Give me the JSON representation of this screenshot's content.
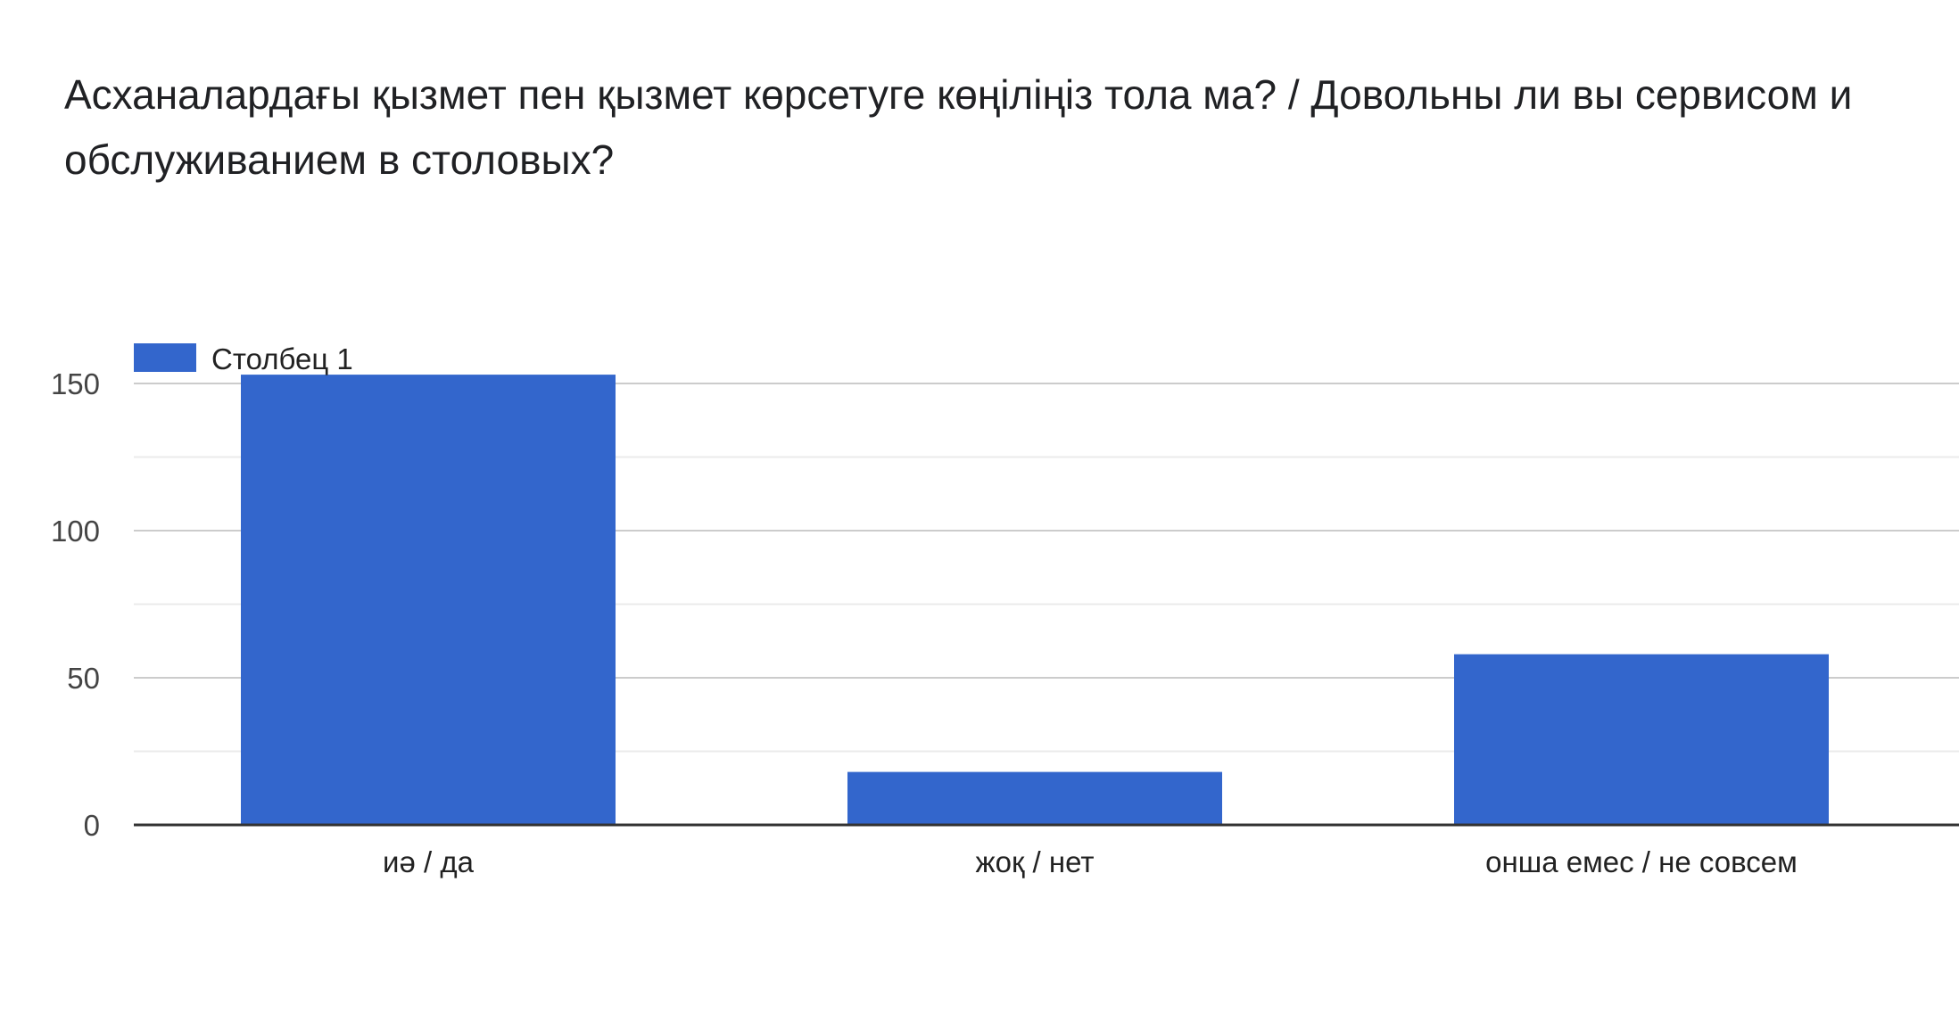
{
  "title": "Асханалардағы қызмет пен қызмет көрсетуге көңіліңіз тола ма? / Довольны ли вы сервисом и обслуживанием в столовых?",
  "chart_data": {
    "type": "bar",
    "title": "Асханалардағы қызмет пен қызмет көрсетуге көңіліңіз тола ма? / Довольны ли вы сервисом и обслуживанием в столовых?",
    "categories": [
      "иә / да",
      "жоқ / нет",
      "онша емес / не совсем"
    ],
    "series": [
      {
        "name": "Столбец 1",
        "values": [
          153,
          18,
          58
        ]
      }
    ],
    "y_ticks": [
      "0",
      "50",
      "100",
      "150"
    ],
    "ylim": [
      0,
      150
    ],
    "xlabel": "",
    "ylabel": "",
    "grid": true,
    "legend_position": "top-left",
    "colors": {
      "bar": "#3366cc",
      "grid_major": "#cccccc",
      "grid_minor": "#ebebeb",
      "axis": "#333333"
    }
  }
}
